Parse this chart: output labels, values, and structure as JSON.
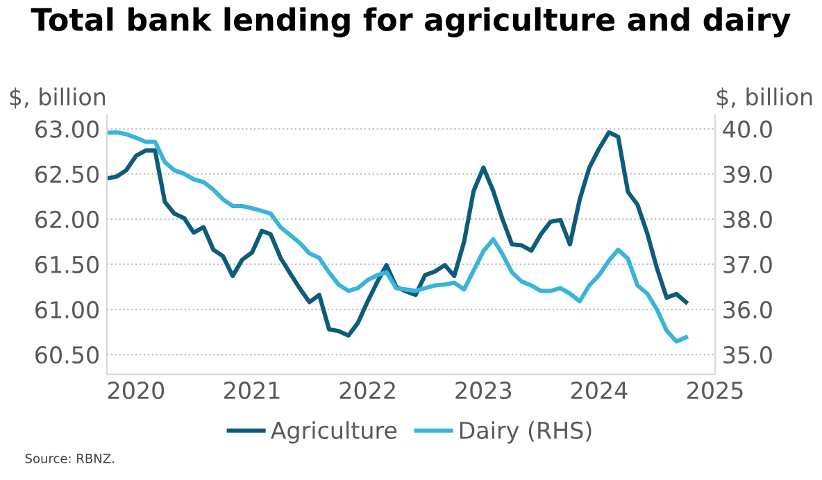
{
  "chart_data": {
    "type": "line",
    "title": "Total bank lending for agriculture and dairy",
    "ylabel": "$, billion",
    "y2label": "$, billion",
    "annotations": [
      "Source: RBNZ."
    ],
    "x": [
      "2019-10",
      "2019-11",
      "2019-12",
      "2020-01",
      "2020-02",
      "2020-03",
      "2020-04",
      "2020-05",
      "2020-06",
      "2020-07",
      "2020-08",
      "2020-09",
      "2020-10",
      "2020-11",
      "2020-12",
      "2021-01",
      "2021-02",
      "2021-03",
      "2021-04",
      "2021-05",
      "2021-06",
      "2021-07",
      "2021-08",
      "2021-09",
      "2021-10",
      "2021-11",
      "2021-12",
      "2022-01",
      "2022-02",
      "2022-03",
      "2022-04",
      "2022-05",
      "2022-06",
      "2022-07",
      "2022-08",
      "2022-09",
      "2022-10",
      "2022-11",
      "2022-12",
      "2023-01",
      "2023-02",
      "2023-03",
      "2023-04",
      "2023-05",
      "2023-06",
      "2023-07",
      "2023-08",
      "2023-09",
      "2023-10",
      "2023-11",
      "2023-12",
      "2024-01",
      "2024-02",
      "2024-03",
      "2024-04",
      "2024-05",
      "2024-06",
      "2024-07",
      "2024-08",
      "2024-09",
      "2024-10"
    ],
    "series": [
      {
        "name": "Agriculture",
        "color": "#0d5c7a",
        "values": [
          62.45,
          62.47,
          62.54,
          62.7,
          62.76,
          62.76,
          62.19,
          62.06,
          62.01,
          61.85,
          61.91,
          61.66,
          61.59,
          61.37,
          61.55,
          61.63,
          61.87,
          61.83,
          61.57,
          61.4,
          61.23,
          61.08,
          61.16,
          60.78,
          60.76,
          60.71,
          60.85,
          61.09,
          61.31,
          61.49,
          61.25,
          61.2,
          61.16,
          61.38,
          61.42,
          61.49,
          61.37,
          61.75,
          62.31,
          62.57,
          62.31,
          62.01,
          61.72,
          61.71,
          61.65,
          61.83,
          61.97,
          61.99,
          61.72,
          62.22,
          62.57,
          62.78,
          62.96,
          62.91,
          62.3,
          62.16,
          61.84,
          61.46,
          61.13,
          61.17,
          61.08
        ]
      },
      {
        "name": "Dairy (RHS)",
        "color": "#3ab4d8",
        "axis": "y2",
        "values": [
          39.91,
          39.92,
          39.88,
          39.8,
          39.71,
          39.71,
          39.26,
          39.08,
          39.0,
          38.88,
          38.82,
          38.65,
          38.44,
          38.29,
          38.29,
          38.24,
          38.18,
          38.12,
          37.82,
          37.65,
          37.47,
          37.24,
          37.14,
          36.82,
          36.55,
          36.41,
          36.47,
          36.65,
          36.76,
          36.82,
          36.47,
          36.44,
          36.41,
          36.47,
          36.53,
          36.55,
          36.59,
          36.44,
          36.86,
          37.29,
          37.55,
          37.24,
          36.82,
          36.62,
          36.53,
          36.41,
          36.41,
          36.47,
          36.35,
          36.18,
          36.53,
          36.76,
          37.08,
          37.32,
          37.12,
          36.53,
          36.35,
          36.0,
          35.53,
          35.29,
          35.38
        ]
      }
    ],
    "xlim": [
      "2019-10",
      "2025-01"
    ],
    "xticks": [
      {
        "value": "2020-01",
        "label": "2020"
      },
      {
        "value": "2021-01",
        "label": "2021"
      },
      {
        "value": "2022-01",
        "label": "2022"
      },
      {
        "value": "2023-01",
        "label": "2023"
      },
      {
        "value": "2024-01",
        "label": "2024"
      },
      {
        "value": "2025-01",
        "label": "2025"
      }
    ],
    "ylim": [
      60.28,
      63.15
    ],
    "yticks": [
      {
        "value": 60.5,
        "label": "60.50"
      },
      {
        "value": 61,
        "label": "61.00"
      },
      {
        "value": 61.5,
        "label": "61.50"
      },
      {
        "value": 62,
        "label": "62.00"
      },
      {
        "value": 62.5,
        "label": "62.50"
      },
      {
        "value": 63,
        "label": "63.00"
      }
    ],
    "y2lim": [
      34.56,
      40.3
    ],
    "y2ticks": [
      {
        "value": 35,
        "label": "35.0"
      },
      {
        "value": 36,
        "label": "36.0"
      },
      {
        "value": 37,
        "label": "37.0"
      },
      {
        "value": 38,
        "label": "38.0"
      },
      {
        "value": 39,
        "label": "39.0"
      },
      {
        "value": 40,
        "label": "40.0"
      }
    ],
    "grid": "y",
    "legend": "bottom",
    "line_style": "solid",
    "marker": "none"
  }
}
